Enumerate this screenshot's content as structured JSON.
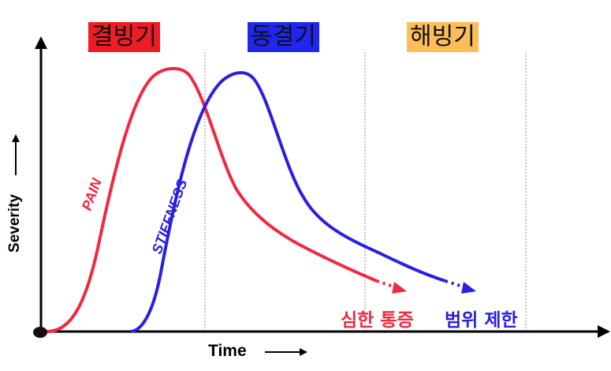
{
  "phases": [
    {
      "label": "결빙기",
      "color": "#ee1c24"
    },
    {
      "label": "동결기",
      "color": "#1f26ef"
    },
    {
      "label": "해빙기",
      "color": "#fdbe5a"
    }
  ],
  "axes": {
    "x_label": "Time",
    "y_label": "Severity"
  },
  "curves": {
    "pain": {
      "label": "PAIN",
      "color": "#ee2940",
      "end_label": "심한 통증"
    },
    "stiffness": {
      "label": "STIFFNESS",
      "color": "#2a1fe0",
      "end_label": "범위 제한"
    }
  }
}
